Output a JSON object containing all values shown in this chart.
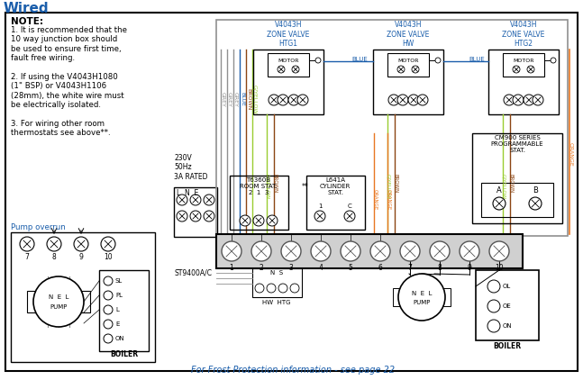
{
  "title": "Wired",
  "title_color": "#1B5EAB",
  "bg_color": "#ffffff",
  "border_color": "#000000",
  "wire_colors": {
    "grey": "#909090",
    "blue": "#1B5EAB",
    "brown": "#8B4513",
    "orange": "#E87722",
    "gyellow": "#9ACD32",
    "black": "#222222",
    "white": "#ffffff",
    "ltgrey": "#d0d0d0"
  },
  "note_text": "1. It is recommended that the\n10 way junction box should\nbe used to ensure first time,\nfault free wiring.\n\n2. If using the V4043H1080\n(1\" BSP) or V4043H1106\n(28mm), the white wire must\nbe electrically isolated.\n\n3. For wiring other room\nthermostats see above**.",
  "frost_text": "For Frost Protection information - see page 22"
}
